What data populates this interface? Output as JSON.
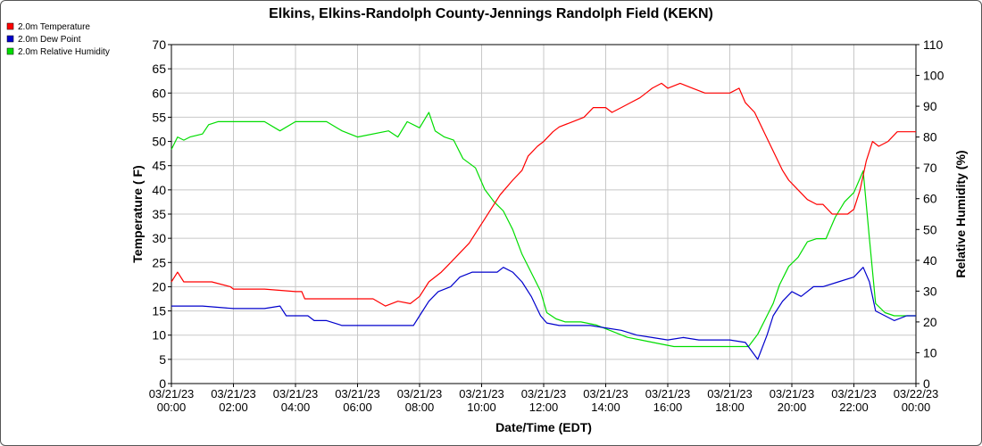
{
  "chart_data": {
    "type": "line",
    "title": "Elkins, Elkins-Randolph County-Jennings Randolph Field (KEKN)",
    "xlabel": "Date/Time (EDT)",
    "ylabel": "Temperature ( F)",
    "y2label": "Relative Humidity (%)",
    "ylim": [
      0,
      70
    ],
    "y2lim": [
      0,
      110
    ],
    "xlim": [
      0,
      24
    ],
    "grid": true,
    "legend_position": "top-left",
    "yticks": [
      "0",
      "5",
      "10",
      "15",
      "20",
      "25",
      "30",
      "35",
      "40",
      "45",
      "50",
      "55",
      "60",
      "65",
      "70"
    ],
    "y2ticks": [
      "0",
      "10",
      "20",
      "30",
      "40",
      "50",
      "60",
      "70",
      "80",
      "90",
      "100",
      "110"
    ],
    "xticks": [
      {
        "date": "03/21/23",
        "time": "00:00"
      },
      {
        "date": "03/21/23",
        "time": "02:00"
      },
      {
        "date": "03/21/23",
        "time": "04:00"
      },
      {
        "date": "03/21/23",
        "time": "06:00"
      },
      {
        "date": "03/21/23",
        "time": "08:00"
      },
      {
        "date": "03/21/23",
        "time": "10:00"
      },
      {
        "date": "03/21/23",
        "time": "12:00"
      },
      {
        "date": "03/21/23",
        "time": "14:00"
      },
      {
        "date": "03/21/23",
        "time": "16:00"
      },
      {
        "date": "03/21/23",
        "time": "18:00"
      },
      {
        "date": "03/21/23",
        "time": "20:00"
      },
      {
        "date": "03/21/23",
        "time": "22:00"
      },
      {
        "date": "03/22/23",
        "time": "00:00"
      }
    ],
    "series": [
      {
        "name": "2.0m Temperature",
        "color": "#ff0000",
        "axis": "left",
        "points": [
          [
            0.0,
            21
          ],
          [
            0.2,
            23
          ],
          [
            0.4,
            21
          ],
          [
            1.3,
            21
          ],
          [
            1.9,
            20
          ],
          [
            2.0,
            19.5
          ],
          [
            3.0,
            19.5
          ],
          [
            4.0,
            19
          ],
          [
            4.2,
            19
          ],
          [
            4.3,
            17.5
          ],
          [
            5.0,
            17.5
          ],
          [
            6.0,
            17.5
          ],
          [
            6.5,
            17.5
          ],
          [
            6.9,
            16
          ],
          [
            7.3,
            17
          ],
          [
            7.7,
            16.5
          ],
          [
            8.0,
            18
          ],
          [
            8.3,
            21
          ],
          [
            8.7,
            23
          ],
          [
            9.0,
            25
          ],
          [
            9.3,
            27
          ],
          [
            9.6,
            29
          ],
          [
            9.9,
            32
          ],
          [
            10.1,
            34
          ],
          [
            10.3,
            36
          ],
          [
            10.6,
            39
          ],
          [
            11.0,
            42
          ],
          [
            11.3,
            44
          ],
          [
            11.5,
            47
          ],
          [
            11.8,
            49
          ],
          [
            12.0,
            50
          ],
          [
            12.3,
            52
          ],
          [
            12.5,
            53
          ],
          [
            12.9,
            54
          ],
          [
            13.3,
            55
          ],
          [
            13.6,
            57
          ],
          [
            14.0,
            57
          ],
          [
            14.2,
            56
          ],
          [
            14.5,
            57
          ],
          [
            14.8,
            58
          ],
          [
            15.1,
            59
          ],
          [
            15.3,
            60
          ],
          [
            15.5,
            61
          ],
          [
            15.8,
            62
          ],
          [
            16.0,
            61
          ],
          [
            16.4,
            62
          ],
          [
            16.8,
            61
          ],
          [
            17.2,
            60
          ],
          [
            17.6,
            60
          ],
          [
            18.0,
            60
          ],
          [
            18.3,
            61
          ],
          [
            18.5,
            58
          ],
          [
            18.8,
            56
          ],
          [
            19.1,
            52
          ],
          [
            19.4,
            48
          ],
          [
            19.7,
            44
          ],
          [
            19.9,
            42
          ],
          [
            20.2,
            40
          ],
          [
            20.5,
            38
          ],
          [
            20.8,
            37
          ],
          [
            21.0,
            37
          ],
          [
            21.3,
            35
          ],
          [
            21.6,
            35
          ],
          [
            21.8,
            35
          ],
          [
            22.0,
            36
          ],
          [
            22.2,
            40
          ],
          [
            22.4,
            46
          ],
          [
            22.6,
            50
          ],
          [
            22.8,
            49
          ],
          [
            23.1,
            50
          ],
          [
            23.4,
            52
          ],
          [
            24.0,
            52
          ]
        ]
      },
      {
        "name": "2.0m Dew Point",
        "color": "#0000cc",
        "axis": "left",
        "points": [
          [
            0.0,
            16
          ],
          [
            1.0,
            16
          ],
          [
            2.0,
            15.5
          ],
          [
            3.0,
            15.5
          ],
          [
            3.5,
            16
          ],
          [
            3.7,
            14
          ],
          [
            4.0,
            14
          ],
          [
            4.4,
            14
          ],
          [
            4.6,
            13
          ],
          [
            5.0,
            13
          ],
          [
            5.5,
            12
          ],
          [
            6.0,
            12
          ],
          [
            7.0,
            12
          ],
          [
            7.8,
            12
          ],
          [
            8.0,
            14
          ],
          [
            8.3,
            17
          ],
          [
            8.6,
            19
          ],
          [
            9.0,
            20
          ],
          [
            9.3,
            22
          ],
          [
            9.7,
            23
          ],
          [
            10.0,
            23
          ],
          [
            10.5,
            23
          ],
          [
            10.7,
            24
          ],
          [
            11.0,
            23
          ],
          [
            11.3,
            21
          ],
          [
            11.6,
            18
          ],
          [
            11.9,
            14
          ],
          [
            12.1,
            12.5
          ],
          [
            12.5,
            12
          ],
          [
            13.0,
            12
          ],
          [
            13.5,
            12
          ],
          [
            14.0,
            11.5
          ],
          [
            14.5,
            11
          ],
          [
            15.0,
            10
          ],
          [
            15.5,
            9.5
          ],
          [
            16.0,
            9
          ],
          [
            16.5,
            9.5
          ],
          [
            17.0,
            9
          ],
          [
            17.5,
            9
          ],
          [
            18.0,
            9
          ],
          [
            18.5,
            8.5
          ],
          [
            18.9,
            5
          ],
          [
            19.2,
            10
          ],
          [
            19.4,
            14
          ],
          [
            19.7,
            17
          ],
          [
            20.0,
            19
          ],
          [
            20.3,
            18
          ],
          [
            20.7,
            20
          ],
          [
            21.0,
            20
          ],
          [
            21.5,
            21
          ],
          [
            22.0,
            22
          ],
          [
            22.3,
            24
          ],
          [
            22.5,
            21
          ],
          [
            22.7,
            15
          ],
          [
            23.0,
            14
          ],
          [
            23.3,
            13
          ],
          [
            23.7,
            14
          ],
          [
            24.0,
            14
          ]
        ]
      },
      {
        "name": "2.0m Relative Humidity",
        "color": "#00dd00",
        "axis": "right",
        "points": [
          [
            0.0,
            76
          ],
          [
            0.2,
            80
          ],
          [
            0.4,
            79
          ],
          [
            0.6,
            80
          ],
          [
            1.0,
            81
          ],
          [
            1.2,
            84
          ],
          [
            1.5,
            85
          ],
          [
            2.0,
            85
          ],
          [
            3.0,
            85
          ],
          [
            3.5,
            82
          ],
          [
            4.0,
            85
          ],
          [
            5.0,
            85
          ],
          [
            5.5,
            82
          ],
          [
            6.0,
            80
          ],
          [
            7.0,
            82
          ],
          [
            7.3,
            80
          ],
          [
            7.6,
            85
          ],
          [
            8.0,
            83
          ],
          [
            8.3,
            88
          ],
          [
            8.5,
            82
          ],
          [
            8.8,
            80
          ],
          [
            9.1,
            79
          ],
          [
            9.4,
            73
          ],
          [
            9.8,
            70
          ],
          [
            10.1,
            63
          ],
          [
            10.4,
            59
          ],
          [
            10.7,
            56
          ],
          [
            11.0,
            50
          ],
          [
            11.3,
            42
          ],
          [
            11.6,
            36
          ],
          [
            11.9,
            30
          ],
          [
            12.1,
            23
          ],
          [
            12.4,
            21
          ],
          [
            12.7,
            20
          ],
          [
            13.2,
            20
          ],
          [
            13.7,
            19
          ],
          [
            14.2,
            17
          ],
          [
            14.7,
            15
          ],
          [
            15.2,
            14
          ],
          [
            15.7,
            13
          ],
          [
            16.2,
            12
          ],
          [
            16.7,
            12
          ],
          [
            17.2,
            12
          ],
          [
            17.7,
            12
          ],
          [
            18.2,
            12
          ],
          [
            18.6,
            12
          ],
          [
            18.9,
            16
          ],
          [
            19.2,
            22
          ],
          [
            19.4,
            26
          ],
          [
            19.6,
            32
          ],
          [
            19.9,
            38
          ],
          [
            20.2,
            41
          ],
          [
            20.5,
            46
          ],
          [
            20.8,
            47
          ],
          [
            21.1,
            47
          ],
          [
            21.4,
            54
          ],
          [
            21.7,
            59
          ],
          [
            22.0,
            62
          ],
          [
            22.3,
            69
          ],
          [
            22.5,
            47
          ],
          [
            22.7,
            26
          ],
          [
            23.0,
            23
          ],
          [
            23.3,
            22
          ],
          [
            23.7,
            22
          ],
          [
            24.0,
            22
          ]
        ]
      }
    ]
  }
}
